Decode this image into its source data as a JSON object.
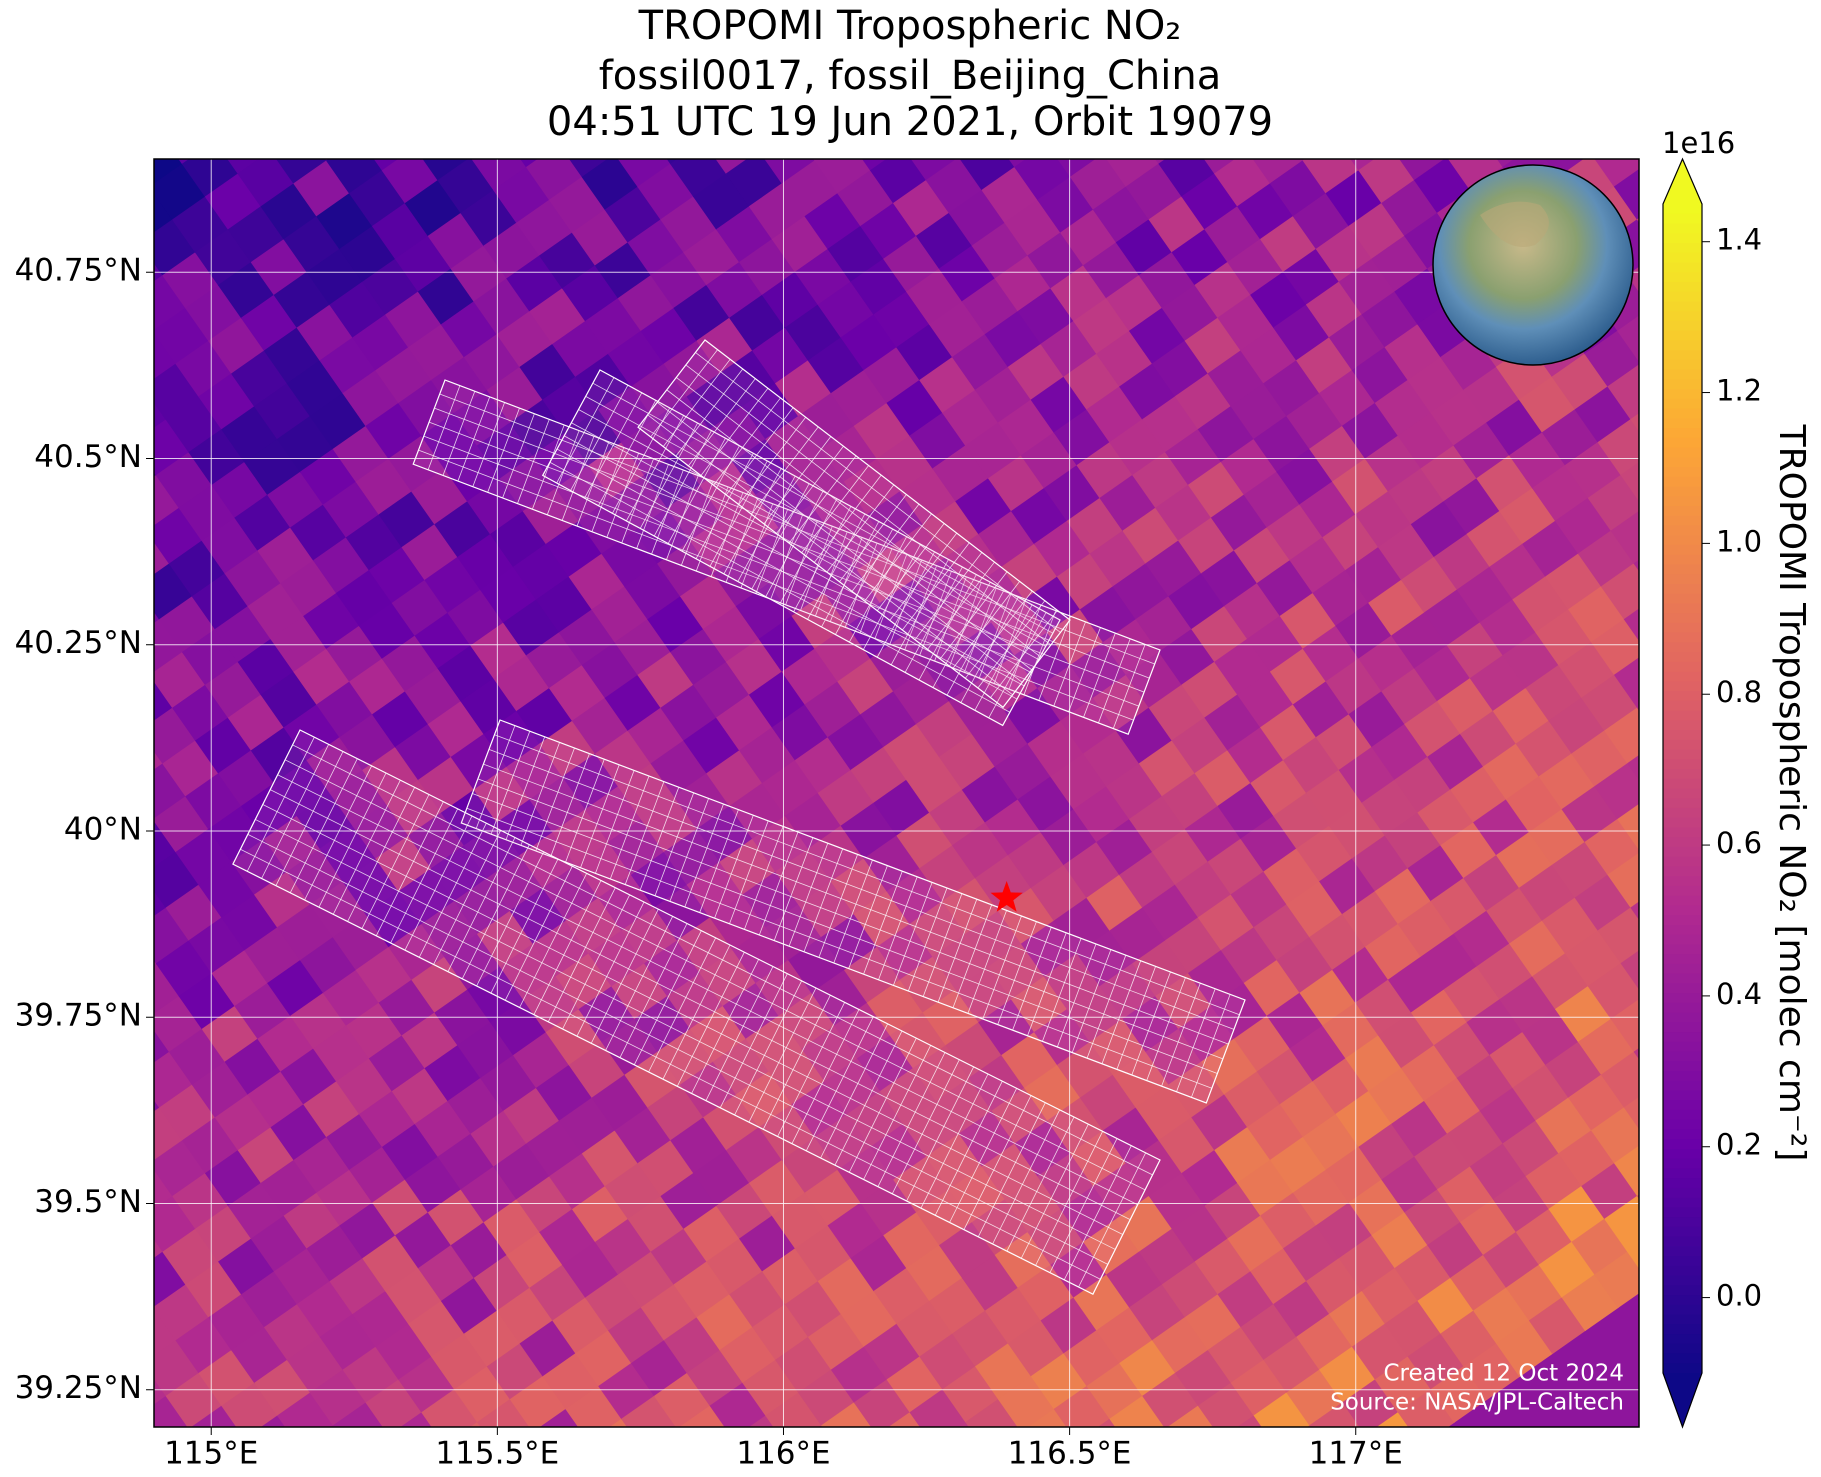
{
  "chart_data": {
    "type": "map",
    "title": [
      "TROPOMI Tropospheric NO₂",
      "fossil0017, fossil_Beijing_China",
      "04:51 UTC 19 Jun 2021, Orbit 19079"
    ],
    "xlim": [
      114.9,
      117.495
    ],
    "ylim": [
      39.2,
      40.902
    ],
    "xticks": [
      {
        "value": 115,
        "label": "115°E"
      },
      {
        "value": 115.5,
        "label": "115.5°E"
      },
      {
        "value": 116,
        "label": "116°E"
      },
      {
        "value": 116.5,
        "label": "116.5°E"
      },
      {
        "value": 117,
        "label": "117°E"
      }
    ],
    "yticks": [
      {
        "value": 39.25,
        "label": "39.25°N"
      },
      {
        "value": 39.5,
        "label": "39.5°N"
      },
      {
        "value": 39.75,
        "label": "39.75°N"
      },
      {
        "value": 40,
        "label": "40°N"
      },
      {
        "value": 40.25,
        "label": "40.25°N"
      },
      {
        "value": 40.5,
        "label": "40.5°N"
      },
      {
        "value": 40.75,
        "label": "40.75°N"
      }
    ],
    "grid": true,
    "target": {
      "lon": 116.39,
      "lat": 39.91,
      "color": "#ff0000"
    },
    "colorbar": {
      "label": "TROPOMI Tropospheric NO₂ [molec cm⁻²]",
      "offset_label": "1e16",
      "lim": [
        -0.1,
        1.45
      ],
      "ticks": [
        {
          "value": 0,
          "label": "0.0"
        },
        {
          "value": 0.2,
          "label": "0.2"
        },
        {
          "value": 0.4,
          "label": "0.4"
        },
        {
          "value": 0.6,
          "label": "0.6"
        },
        {
          "value": 0.8,
          "label": "0.8"
        },
        {
          "value": 1,
          "label": "1.0"
        },
        {
          "value": 1.2,
          "label": "1.2"
        },
        {
          "value": 1.4,
          "label": "1.4"
        }
      ],
      "colors": [
        "#0d0887",
        "#6a00a8",
        "#b12a90",
        "#e16462",
        "#fca636",
        "#f0f921"
      ]
    },
    "annotations": [
      "Created 12 Oct 2024",
      "Source: NASA/JPL-Caltech"
    ]
  }
}
